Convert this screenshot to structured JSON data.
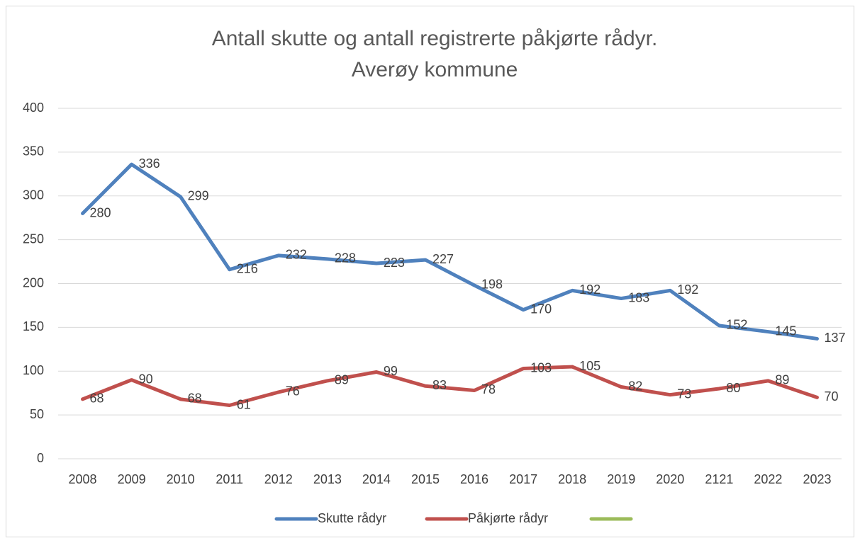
{
  "chart_data": {
    "type": "line",
    "title_lines": [
      "Antall skutte og antall registrerte påkjørte rådyr.",
      "Averøy kommune"
    ],
    "categories": [
      "2008",
      "2009",
      "2010",
      "2011",
      "2012",
      "2013",
      "2014",
      "2015",
      "2016",
      "2017",
      "2018",
      "2019",
      "2020",
      "2121",
      "2022",
      "2023"
    ],
    "series": [
      {
        "name": "Skutte rådyr",
        "color": "#4f81bd",
        "values": [
          280,
          336,
          299,
          216,
          232,
          228,
          223,
          227,
          198,
          170,
          192,
          183,
          192,
          152,
          145,
          137
        ]
      },
      {
        "name": "Påkjørte rådyr",
        "color": "#c0504d",
        "values": [
          68,
          90,
          68,
          61,
          76,
          89,
          99,
          83,
          78,
          103,
          105,
          82,
          73,
          80,
          89,
          70
        ]
      },
      {
        "name": null,
        "color": "#9bbb59",
        "values": [
          null,
          null,
          null,
          null,
          null,
          null,
          null,
          null,
          null,
          null,
          null,
          null,
          null,
          null,
          null,
          null
        ]
      }
    ],
    "ylim": [
      0,
      400
    ],
    "yticks": [
      0,
      50,
      100,
      150,
      200,
      250,
      300,
      350,
      400
    ],
    "grid": true,
    "legend": "bottom"
  }
}
